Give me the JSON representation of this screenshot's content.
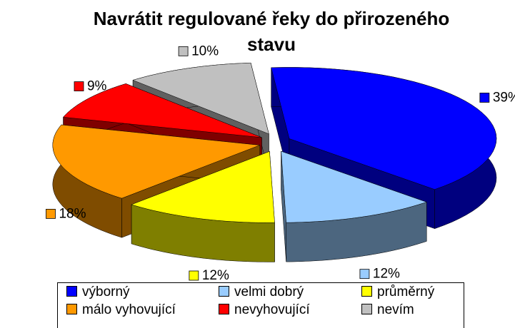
{
  "chart_data": {
    "type": "pie3d",
    "title": "Navrátit regulované řeky do přirozeného stavu",
    "categories": [
      "výborný",
      "velmi dobrý",
      "průměrný",
      "málo vyhovující",
      "nevyhovující",
      "nevím"
    ],
    "values": [
      39,
      12,
      12,
      18,
      9,
      10
    ],
    "value_labels": [
      "39%",
      "12%",
      "12%",
      "18%",
      "9%",
      "10%"
    ],
    "colors": [
      "#0000ff",
      "#99ccff",
      "#ffff00",
      "#ff9900",
      "#ff0000",
      "#c0c0c0"
    ],
    "legend": "bottom"
  }
}
